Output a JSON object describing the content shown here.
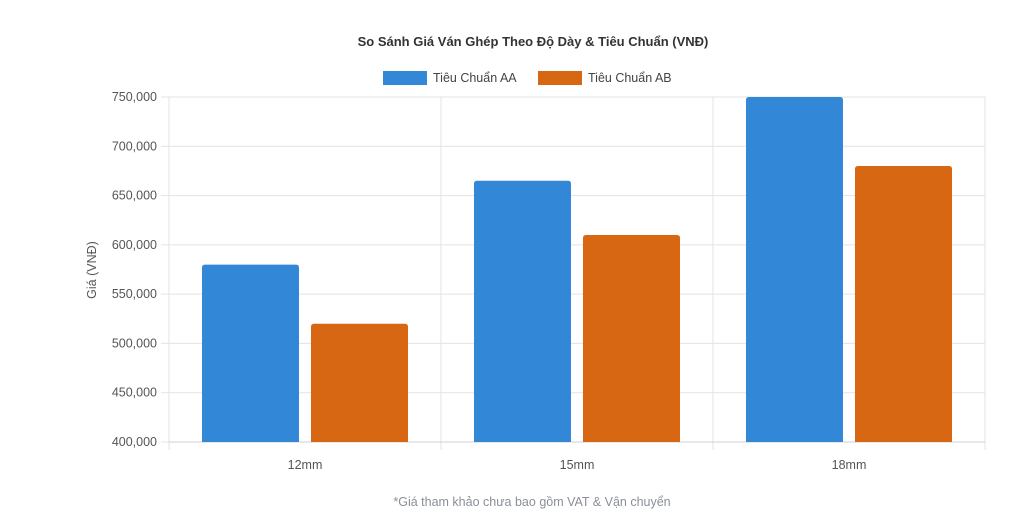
{
  "chart_data": {
    "type": "bar",
    "title": "So Sánh Giá Ván Ghép Theo Độ Dày & Tiêu Chuẩn (VNĐ)",
    "xlabel": "",
    "ylabel": "Giá (VNĐ)",
    "categories": [
      "12mm",
      "15mm",
      "18mm"
    ],
    "series": [
      {
        "name": "Tiêu Chuẩn AA",
        "color": "#3287d6",
        "values": [
          580000,
          665000,
          750000
        ]
      },
      {
        "name": "Tiêu Chuẩn AB",
        "color": "#d86714",
        "values": [
          520000,
          610000,
          680000
        ]
      }
    ],
    "ylim": [
      400000,
      750000
    ],
    "yticks": [
      "750,000",
      "700,000",
      "650,000",
      "600,000",
      "550,000",
      "500,000",
      "450,000",
      "400,000"
    ],
    "grid": true,
    "legend_position": "top-center"
  },
  "footnote": "*Giá tham khảo chưa bao gồm VAT & Vận chuyển"
}
